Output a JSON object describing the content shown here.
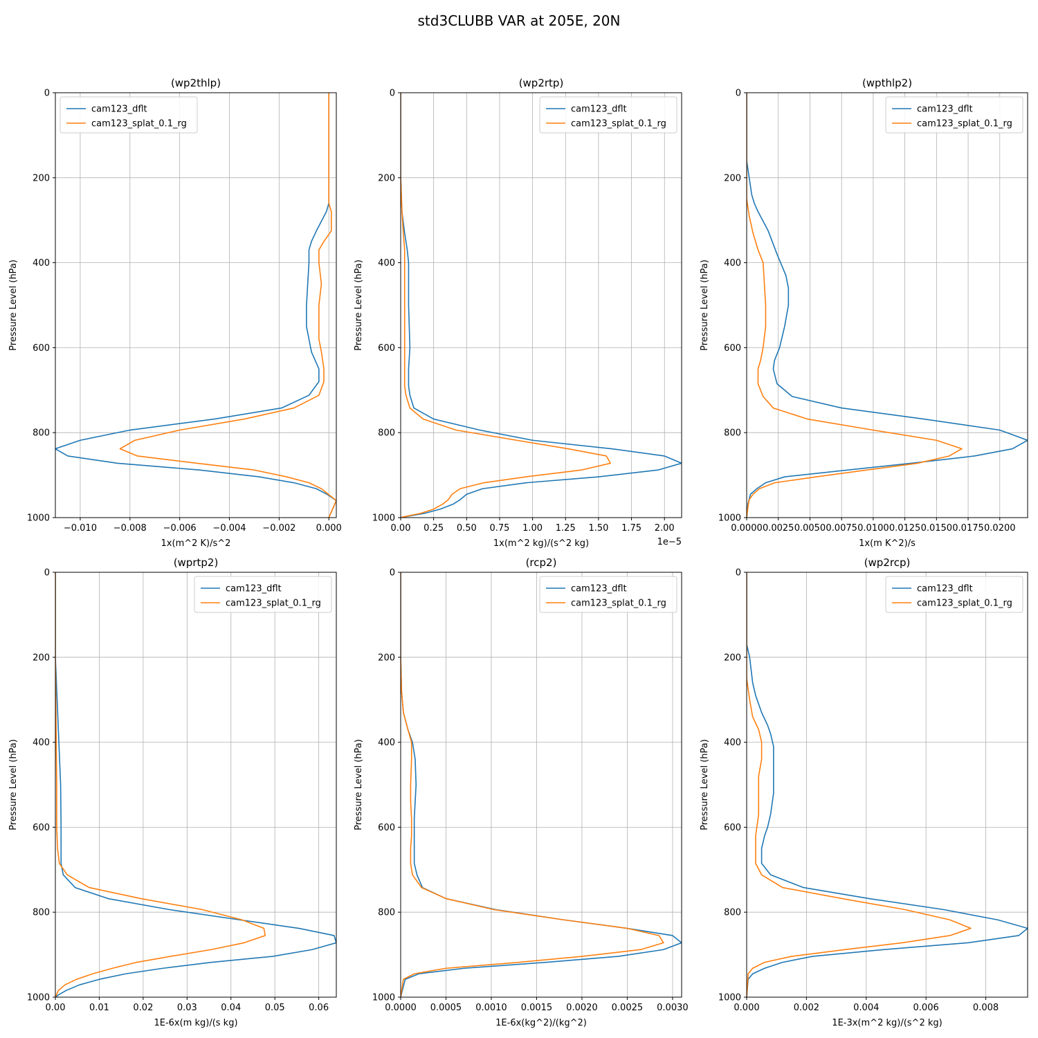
{
  "figure": {
    "suptitle": "std3CLUBB VAR at 205E, 20N"
  },
  "colors": {
    "series_0": "#1f77b4",
    "series_1": "#ff7f0e",
    "grid": "#b0b0b0",
    "axis": "#000000"
  },
  "chart_data": [
    {
      "type": "line",
      "title": "(wp2thlp)",
      "xlabel": "1x(m^2 K)/s^2",
      "ylabel": "Pressure Level (hPa)",
      "xlim": [
        -0.011,
        0.0003
      ],
      "ylim": [
        1000,
        0
      ],
      "xticks": [
        -0.01,
        -0.008,
        -0.006,
        -0.004,
        -0.002,
        0.0
      ],
      "xtick_labels": [
        "−0.010",
        "−0.008",
        "−0.006",
        "−0.004",
        "−0.002",
        "0.000"
      ],
      "yticks": [
        0,
        200,
        400,
        600,
        800,
        1000
      ],
      "ytick_labels": [
        "0",
        "200",
        "400",
        "600",
        "800",
        "1000"
      ],
      "offset_text": "",
      "legend_loc": "upper left",
      "series": [
        {
          "name": "cam123_dflt",
          "x": [
            0.0,
            0.0,
            0.0,
            -0.0001,
            -0.0005,
            -0.0007,
            -0.0008,
            -0.0008,
            -0.0009,
            -0.0009,
            -0.0008,
            -0.0007,
            -0.0004,
            -0.0004,
            -0.0008,
            -0.0019,
            -0.0046,
            -0.008,
            -0.01,
            -0.011,
            -0.0105,
            -0.0085,
            -0.0052,
            -0.0028,
            -0.0014,
            -0.0005,
            -5e-05,
            0.0003,
            0.0
          ],
          "y": [
            0,
            200,
            260,
            280,
            325,
            350,
            370,
            400,
            500,
            550,
            580,
            610,
            650,
            680,
            712,
            742,
            768,
            794,
            818,
            838,
            855,
            872,
            888,
            904,
            918,
            932,
            946,
            960,
            1000
          ]
        },
        {
          "name": "cam123_splat_0.1_rg",
          "x": [
            0.0,
            0.0,
            0.0,
            0.0001,
            0.0001,
            -0.0002,
            -0.0004,
            -0.0004,
            -0.0003,
            -0.0004,
            -0.0004,
            -0.0003,
            -0.0002,
            -0.0002,
            -0.0004,
            -0.0014,
            -0.0034,
            -0.006,
            -0.0078,
            -0.0084,
            -0.0077,
            -0.0053,
            -0.003,
            -0.0017,
            -0.0008,
            -0.0003,
            0.0,
            0.0003,
            0.0
          ],
          "y": [
            0,
            200,
            260,
            280,
            325,
            350,
            370,
            400,
            450,
            500,
            580,
            610,
            650,
            680,
            712,
            742,
            768,
            794,
            818,
            838,
            855,
            872,
            888,
            904,
            918,
            932,
            946,
            960,
            1000
          ]
        }
      ]
    },
    {
      "type": "line",
      "title": "(wp2rtp)",
      "xlabel": "1x(m^2 kg)/(s^2 kg)",
      "ylabel": "Pressure Level (hPa)",
      "xlim": [
        0.0,
        2.13
      ],
      "ylim": [
        1000,
        0
      ],
      "xticks": [
        0.0,
        0.25,
        0.5,
        0.75,
        1.0,
        1.25,
        1.5,
        1.75,
        2.0
      ],
      "xtick_labels": [
        "0.00",
        "0.25",
        "0.50",
        "0.75",
        "1.00",
        "1.25",
        "1.50",
        "1.75",
        "2.00"
      ],
      "yticks": [
        0,
        200,
        400,
        600,
        800,
        1000
      ],
      "ytick_labels": [
        "0",
        "200",
        "400",
        "600",
        "800",
        "1000"
      ],
      "offset_text": "1e−5",
      "legend_loc": "upper right",
      "series": [
        {
          "name": "cam123_dflt",
          "x": [
            0.0,
            0.0,
            0.01,
            0.03,
            0.05,
            0.06,
            0.06,
            0.07,
            0.06,
            0.06,
            0.07,
            0.1,
            0.25,
            0.6,
            1.0,
            1.6,
            2.0,
            2.13,
            1.95,
            1.5,
            0.95,
            0.62,
            0.5,
            0.45,
            0.4,
            0.3,
            0.18,
            0.05,
            0.0
          ],
          "y": [
            0,
            200,
            280,
            330,
            370,
            400,
            500,
            600,
            650,
            690,
            712,
            742,
            768,
            794,
            818,
            838,
            855,
            872,
            888,
            904,
            918,
            932,
            945,
            958,
            968,
            980,
            990,
            997,
            1000
          ]
        },
        {
          "name": "cam123_splat_0.1_rg",
          "x": [
            0.0,
            0.0,
            0.01,
            0.02,
            0.03,
            0.03,
            0.03,
            0.03,
            0.03,
            0.03,
            0.04,
            0.07,
            0.17,
            0.42,
            0.88,
            1.27,
            1.56,
            1.59,
            1.37,
            0.95,
            0.63,
            0.45,
            0.39,
            0.36,
            0.32,
            0.25,
            0.15,
            0.04,
            0.0
          ],
          "y": [
            0,
            200,
            280,
            330,
            370,
            400,
            500,
            600,
            650,
            690,
            712,
            742,
            768,
            794,
            818,
            838,
            855,
            872,
            888,
            904,
            918,
            932,
            945,
            958,
            968,
            980,
            990,
            997,
            1000
          ]
        }
      ]
    },
    {
      "type": "line",
      "title": "(wpthlp2)",
      "xlabel": "1x(m K^2)/s",
      "ylabel": "Pressure Level (hPa)",
      "xlim": [
        0.0,
        0.0222
      ],
      "ylim": [
        1000,
        0
      ],
      "xticks": [
        0.0,
        0.0025,
        0.005,
        0.0075,
        0.01,
        0.0125,
        0.015,
        0.0175,
        0.02
      ],
      "xtick_labels": [
        "0.0000",
        "0.0025",
        "0.0050",
        "0.0075",
        "0.0100",
        "0.0125",
        "0.0150",
        "0.0175",
        "0.0200"
      ],
      "yticks": [
        0,
        200,
        400,
        600,
        800,
        1000
      ],
      "ytick_labels": [
        "0",
        "200",
        "400",
        "600",
        "800",
        "1000"
      ],
      "offset_text": "",
      "legend_loc": "upper right",
      "series": [
        {
          "name": "cam123_dflt",
          "x": [
            0.0,
            0.0,
            0.0002,
            0.0004,
            0.0006,
            0.0009,
            0.0017,
            0.0024,
            0.0031,
            0.0033,
            0.0033,
            0.003,
            0.0026,
            0.0022,
            0.0021,
            0.0024,
            0.0036,
            0.0075,
            0.014,
            0.02,
            0.0222,
            0.021,
            0.018,
            0.013,
            0.008,
            0.003,
            0.0015,
            0.0008,
            0.0003,
            0.0001,
            0.0
          ],
          "y": [
            0,
            160,
            200,
            240,
            260,
            280,
            325,
            380,
            430,
            460,
            500,
            550,
            600,
            630,
            650,
            685,
            715,
            742,
            768,
            794,
            818,
            838,
            855,
            872,
            888,
            904,
            918,
            932,
            945,
            968,
            1000
          ]
        },
        {
          "name": "cam123_splat_0.1_rg",
          "x": [
            0.0,
            0.0,
            0.0,
            0.0002,
            0.0005,
            0.0009,
            0.0013,
            0.0014,
            0.0015,
            0.0015,
            0.0013,
            0.0011,
            0.0009,
            0.0009,
            0.0013,
            0.0021,
            0.0048,
            0.01,
            0.015,
            0.017,
            0.016,
            0.0135,
            0.0095,
            0.0055,
            0.0022,
            0.001,
            0.0005,
            0.0002,
            0.0001,
            0.0
          ],
          "y": [
            0,
            200,
            250,
            290,
            330,
            370,
            400,
            450,
            500,
            550,
            600,
            630,
            650,
            685,
            715,
            742,
            768,
            794,
            818,
            838,
            855,
            872,
            888,
            904,
            918,
            932,
            945,
            958,
            975,
            1000
          ]
        }
      ]
    },
    {
      "type": "line",
      "title": "(wprtp2)",
      "xlabel": "1E-6x(m kg)/(s kg)",
      "ylabel": "Pressure Level (hPa)",
      "xlim": [
        0.0,
        0.064
      ],
      "ylim": [
        1000,
        0
      ],
      "xticks": [
        0.0,
        0.01,
        0.02,
        0.03,
        0.04,
        0.05,
        0.06
      ],
      "xtick_labels": [
        "0.00",
        "0.01",
        "0.02",
        "0.03",
        "0.04",
        "0.05",
        "0.06"
      ],
      "yticks": [
        0,
        200,
        400,
        600,
        800,
        1000
      ],
      "ytick_labels": [
        "0",
        "200",
        "400",
        "600",
        "800",
        "1000"
      ],
      "offset_text": "",
      "legend_loc": "upper right",
      "series": [
        {
          "name": "cam123_dflt",
          "x": [
            0.0,
            0.0,
            0.0004,
            0.0008,
            0.0012,
            0.0013,
            0.0013,
            0.0013,
            0.0018,
            0.0045,
            0.012,
            0.026,
            0.042,
            0.0555,
            0.0635,
            0.064,
            0.0585,
            0.0495,
            0.0355,
            0.0245,
            0.016,
            0.01,
            0.0055,
            0.0025,
            0.0008,
            0.0
          ],
          "y": [
            0,
            200,
            300,
            400,
            500,
            600,
            650,
            685,
            712,
            742,
            768,
            794,
            818,
            838,
            855,
            872,
            888,
            904,
            918,
            932,
            945,
            958,
            971,
            984,
            994,
            1000
          ]
        },
        {
          "name": "cam123_splat_0.1_rg",
          "x": [
            0.0,
            0.0,
            0.0001,
            0.0002,
            0.0003,
            0.0003,
            0.0005,
            0.0009,
            0.0027,
            0.0077,
            0.0195,
            0.0335,
            0.0425,
            0.0475,
            0.0478,
            0.043,
            0.0355,
            0.0262,
            0.0185,
            0.013,
            0.0085,
            0.0048,
            0.0022,
            0.0007,
            0.0
          ],
          "y": [
            0,
            200,
            300,
            400,
            500,
            600,
            650,
            685,
            712,
            742,
            768,
            794,
            818,
            838,
            855,
            872,
            888,
            904,
            918,
            932,
            945,
            958,
            971,
            984,
            1000
          ]
        }
      ]
    },
    {
      "type": "line",
      "title": "(rcp2)",
      "xlabel": "1E-6x(kg^2)/(kg^2)",
      "ylabel": "Pressure Level (hPa)",
      "xlim": [
        0.0,
        0.0031
      ],
      "ylim": [
        1000,
        0
      ],
      "xticks": [
        0.0,
        0.0005,
        0.001,
        0.0015,
        0.002,
        0.0025,
        0.003
      ],
      "xtick_labels": [
        "0.0000",
        "0.0005",
        "0.0010",
        "0.0015",
        "0.0020",
        "0.0025",
        "0.0030"
      ],
      "yticks": [
        0,
        200,
        400,
        600,
        800,
        1000
      ],
      "ytick_labels": [
        "0",
        "200",
        "400",
        "600",
        "800",
        "1000"
      ],
      "offset_text": "",
      "legend_loc": "upper right",
      "series": [
        {
          "name": "cam123_dflt",
          "x": [
            0.0,
            0.0,
            1e-05,
            3e-05,
            8e-05,
            0.00013,
            0.00016,
            0.00017,
            0.00016,
            0.00015,
            0.00015,
            0.00015,
            0.00015,
            0.00018,
            0.00024,
            0.0005,
            0.00105,
            0.0018,
            0.0025,
            0.003,
            0.0031,
            0.0029,
            0.0024,
            0.0016,
            0.0007,
            0.0002,
            5e-05,
            0.0
          ],
          "y": [
            0,
            200,
            280,
            330,
            370,
            400,
            440,
            500,
            540,
            580,
            620,
            650,
            685,
            712,
            742,
            768,
            794,
            818,
            838,
            855,
            872,
            888,
            904,
            918,
            932,
            945,
            958,
            1000
          ]
        },
        {
          "name": "cam123_splat_0.1_rg",
          "x": [
            0.0,
            0.0,
            1e-05,
            3e-05,
            8e-05,
            0.00012,
            0.00012,
            0.00011,
            0.00011,
            0.00012,
            0.00012,
            0.00011,
            0.00011,
            0.00013,
            0.00023,
            0.0005,
            0.00103,
            0.0018,
            0.0025,
            0.00285,
            0.0029,
            0.00265,
            0.002,
            0.0013,
            0.0005,
            0.00015,
            3e-05,
            0.0
          ],
          "y": [
            0,
            200,
            280,
            330,
            370,
            400,
            440,
            500,
            540,
            580,
            620,
            650,
            685,
            712,
            742,
            768,
            794,
            818,
            838,
            855,
            872,
            888,
            904,
            918,
            932,
            945,
            958,
            1000
          ]
        }
      ]
    },
    {
      "type": "line",
      "title": "(wp2rcp)",
      "xlabel": "1E-3x(m^2 kg)/(s^2 kg)",
      "ylabel": "Pressure Level (hPa)",
      "xlim": [
        0.0,
        0.0094
      ],
      "ylim": [
        1000,
        0
      ],
      "xticks": [
        0.0,
        0.002,
        0.004,
        0.006,
        0.008
      ],
      "xtick_labels": [
        "0.000",
        "0.002",
        "0.004",
        "0.006",
        "0.008"
      ],
      "yticks": [
        0,
        200,
        400,
        600,
        800,
        1000
      ],
      "ytick_labels": [
        "0",
        "200",
        "400",
        "600",
        "800",
        "1000"
      ],
      "offset_text": "",
      "legend_loc": "upper right",
      "series": [
        {
          "name": "cam123_dflt",
          "x": [
            0.0,
            0.0,
            0.0001,
            0.00015,
            0.0002,
            0.0003,
            0.0005,
            0.0007,
            0.0008,
            0.0009,
            0.0009,
            0.0009,
            0.0008,
            0.0007,
            0.0006,
            0.0005,
            0.0005,
            0.0008,
            0.0019,
            0.0041,
            0.0066,
            0.0084,
            0.0094,
            0.0091,
            0.0074,
            0.0046,
            0.0022,
            0.0012,
            0.0006,
            0.0002,
            5e-05,
            0.0
          ],
          "y": [
            0,
            170,
            200,
            230,
            260,
            290,
            330,
            360,
            380,
            410,
            460,
            520,
            570,
            600,
            620,
            650,
            685,
            712,
            742,
            768,
            794,
            818,
            838,
            855,
            872,
            888,
            904,
            918,
            932,
            945,
            958,
            1000
          ]
        },
        {
          "name": "cam123_splat_0.1_rg",
          "x": [
            0.0,
            0.0,
            0.0,
            0.0001,
            0.0002,
            0.0004,
            0.0005,
            0.0005,
            0.0004,
            0.0004,
            0.0004,
            0.0003,
            0.0003,
            0.0003,
            0.0005,
            0.0012,
            0.0032,
            0.0053,
            0.0068,
            0.0075,
            0.0068,
            0.0052,
            0.0033,
            0.0015,
            0.0006,
            0.0002,
            5e-05,
            0.0
          ],
          "y": [
            0,
            200,
            250,
            300,
            340,
            370,
            400,
            440,
            480,
            520,
            570,
            620,
            650,
            685,
            712,
            742,
            768,
            794,
            818,
            838,
            855,
            872,
            888,
            904,
            918,
            932,
            945,
            1000
          ]
        }
      ]
    }
  ]
}
